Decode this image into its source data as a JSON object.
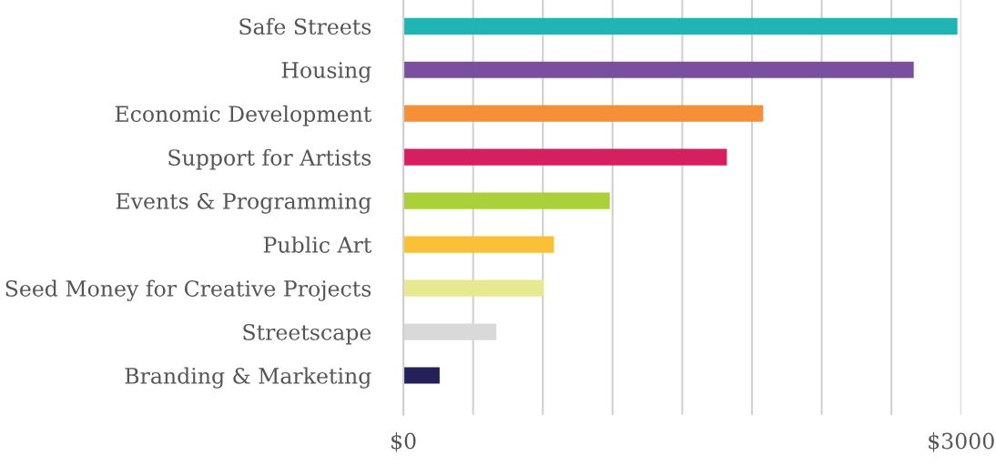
{
  "chart_data": {
    "type": "bar",
    "orientation": "horizontal",
    "categories": [
      "Safe Streets",
      "Housing",
      "Economic Development",
      "Support for Artists",
      "Events & Programming",
      "Public Art",
      "Seed Money for Creative Projects",
      "Streetscape",
      "Branding & Marketing"
    ],
    "values": [
      2980,
      2745,
      1935,
      1740,
      1110,
      810,
      755,
      500,
      195
    ],
    "colors": [
      "#20b5b3",
      "#7b4fa0",
      "#f58f3a",
      "#d61f5e",
      "#acd03a",
      "#fbc136",
      "#e6e98f",
      "#d9d9d9",
      "#24215a"
    ],
    "xlim": [
      0,
      3000
    ],
    "xticks": [
      {
        "value": 0,
        "label": "$0"
      },
      {
        "value": 375,
        "label": null
      },
      {
        "value": 750,
        "label": null
      },
      {
        "value": 1125,
        "label": null
      },
      {
        "value": 1500,
        "label": null
      },
      {
        "value": 1875,
        "label": null
      },
      {
        "value": 2250,
        "label": null
      },
      {
        "value": 2625,
        "label": null
      },
      {
        "value": 3000,
        "label": "$3000"
      }
    ],
    "grid": "x"
  }
}
